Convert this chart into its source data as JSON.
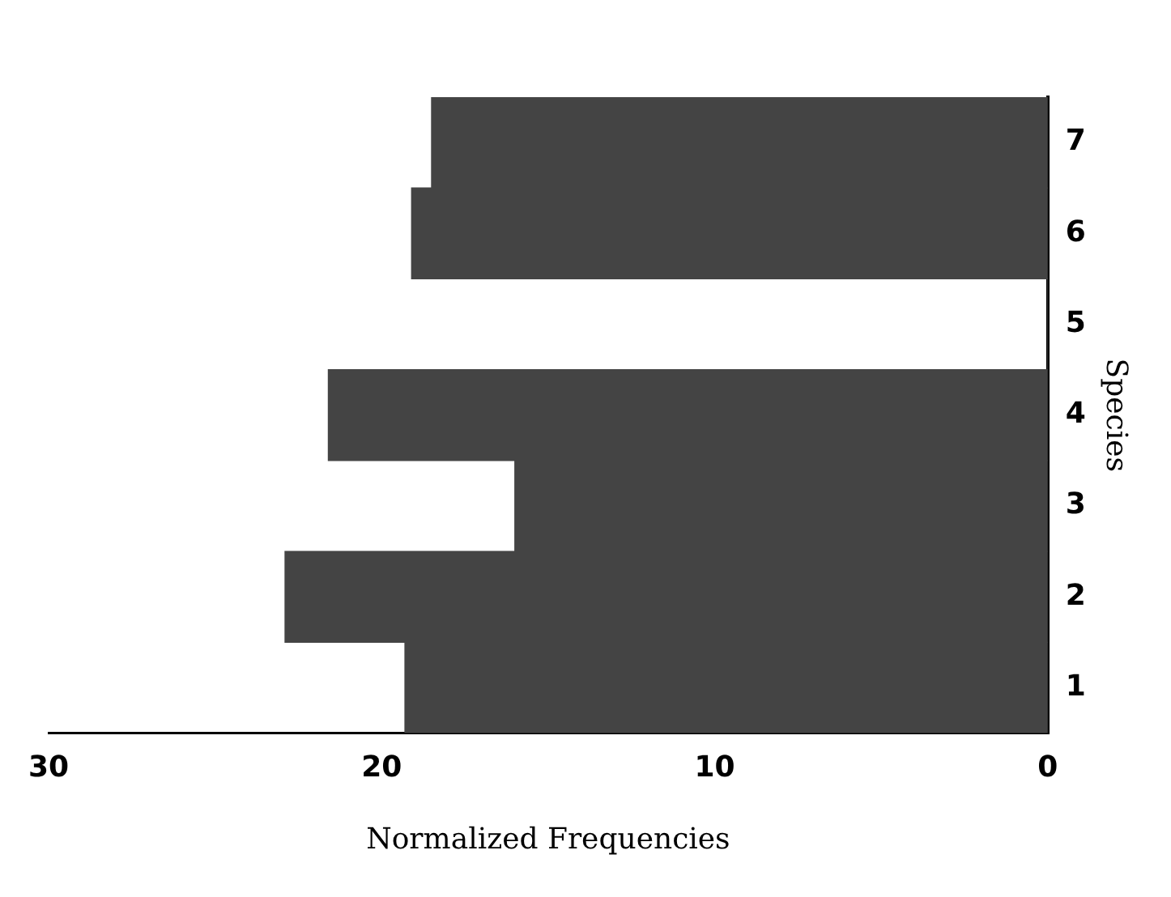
{
  "chart_data": {
    "type": "bar",
    "orientation": "horizontal",
    "xlabel": "Normalized Frequencies",
    "ylabel": "Species",
    "categories": [
      "7",
      "6",
      "5",
      "4",
      "3",
      "2",
      "1"
    ],
    "values": [
      18.5,
      19.1,
      0,
      21.6,
      16.0,
      22.9,
      19.3
    ],
    "color": "#444444",
    "xlim": [
      30,
      0
    ],
    "xticks": [
      30,
      20,
      10,
      0
    ],
    "grid": false
  }
}
